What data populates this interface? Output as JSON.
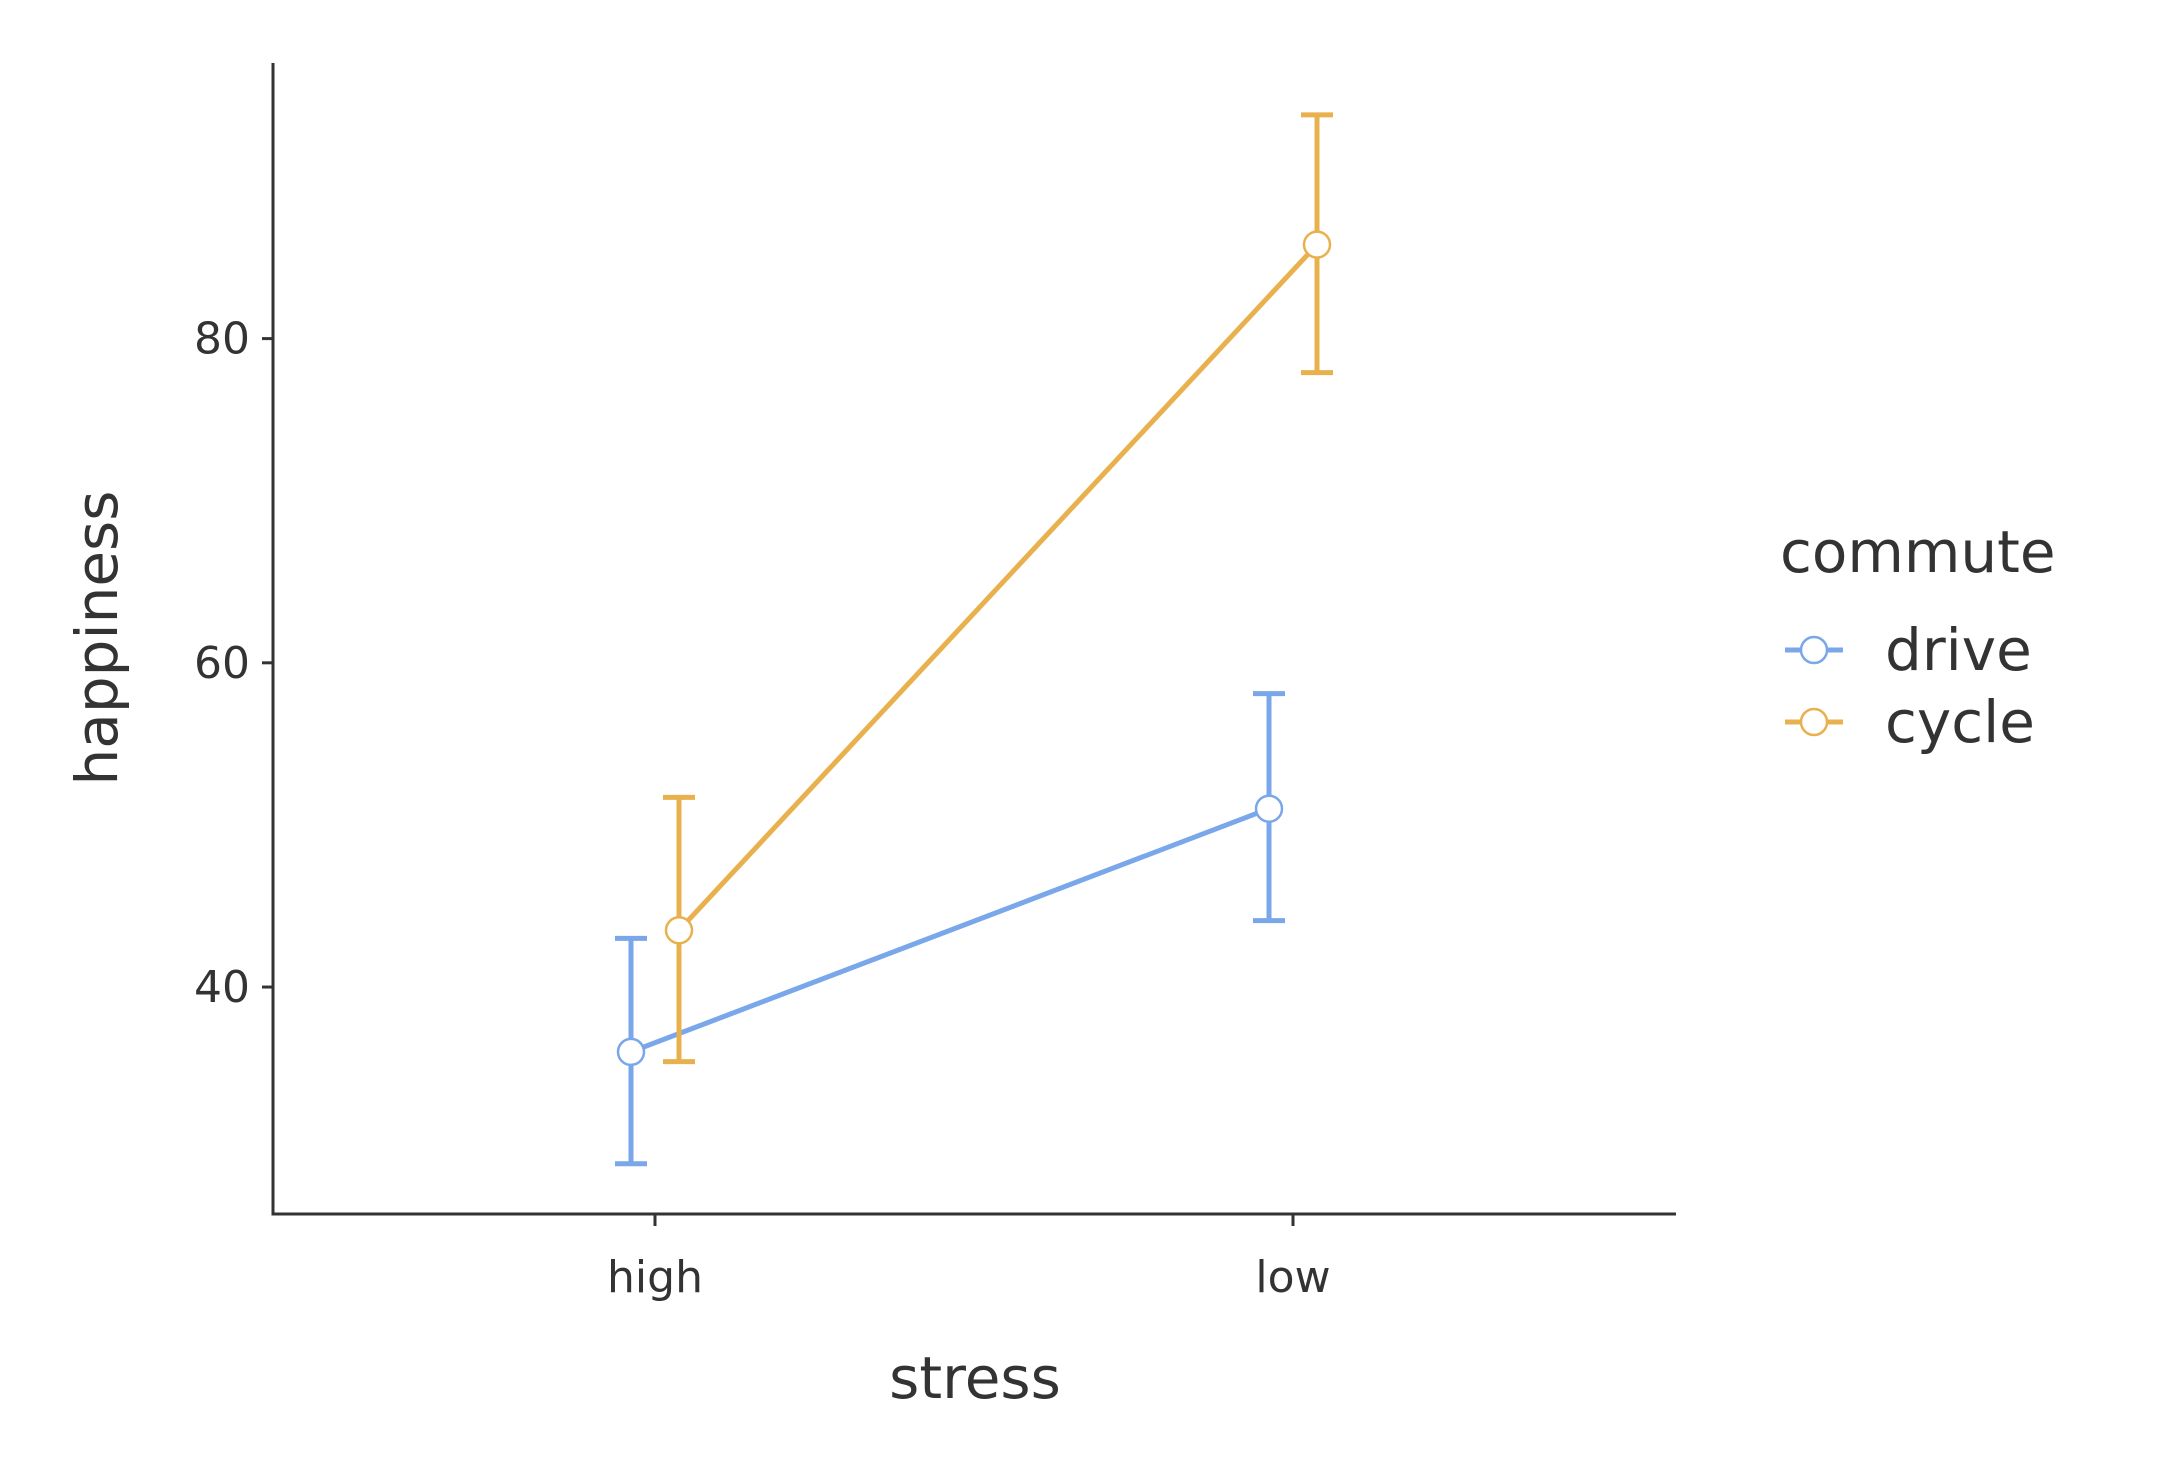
{
  "chart_data": {
    "type": "line",
    "title": "",
    "xlabel": "stress",
    "ylabel": "happiness",
    "categories": [
      "high",
      "low"
    ],
    "ylim": [
      26,
      97
    ],
    "yticks": [
      40,
      60,
      80
    ],
    "grid": false,
    "legend": {
      "title": "commute",
      "placement": "right"
    },
    "series": [
      {
        "name": "drive",
        "color": "#7aa6ea",
        "values": [
          36,
          51
        ],
        "err_low": [
          29.1,
          44.1
        ],
        "err_high": [
          43.0,
          58.1
        ]
      },
      {
        "name": "cycle",
        "color": "#e8b14e",
        "values": [
          43.5,
          85.8
        ],
        "err_low": [
          35.4,
          77.9
        ],
        "err_high": [
          51.7,
          93.8
        ]
      }
    ]
  }
}
